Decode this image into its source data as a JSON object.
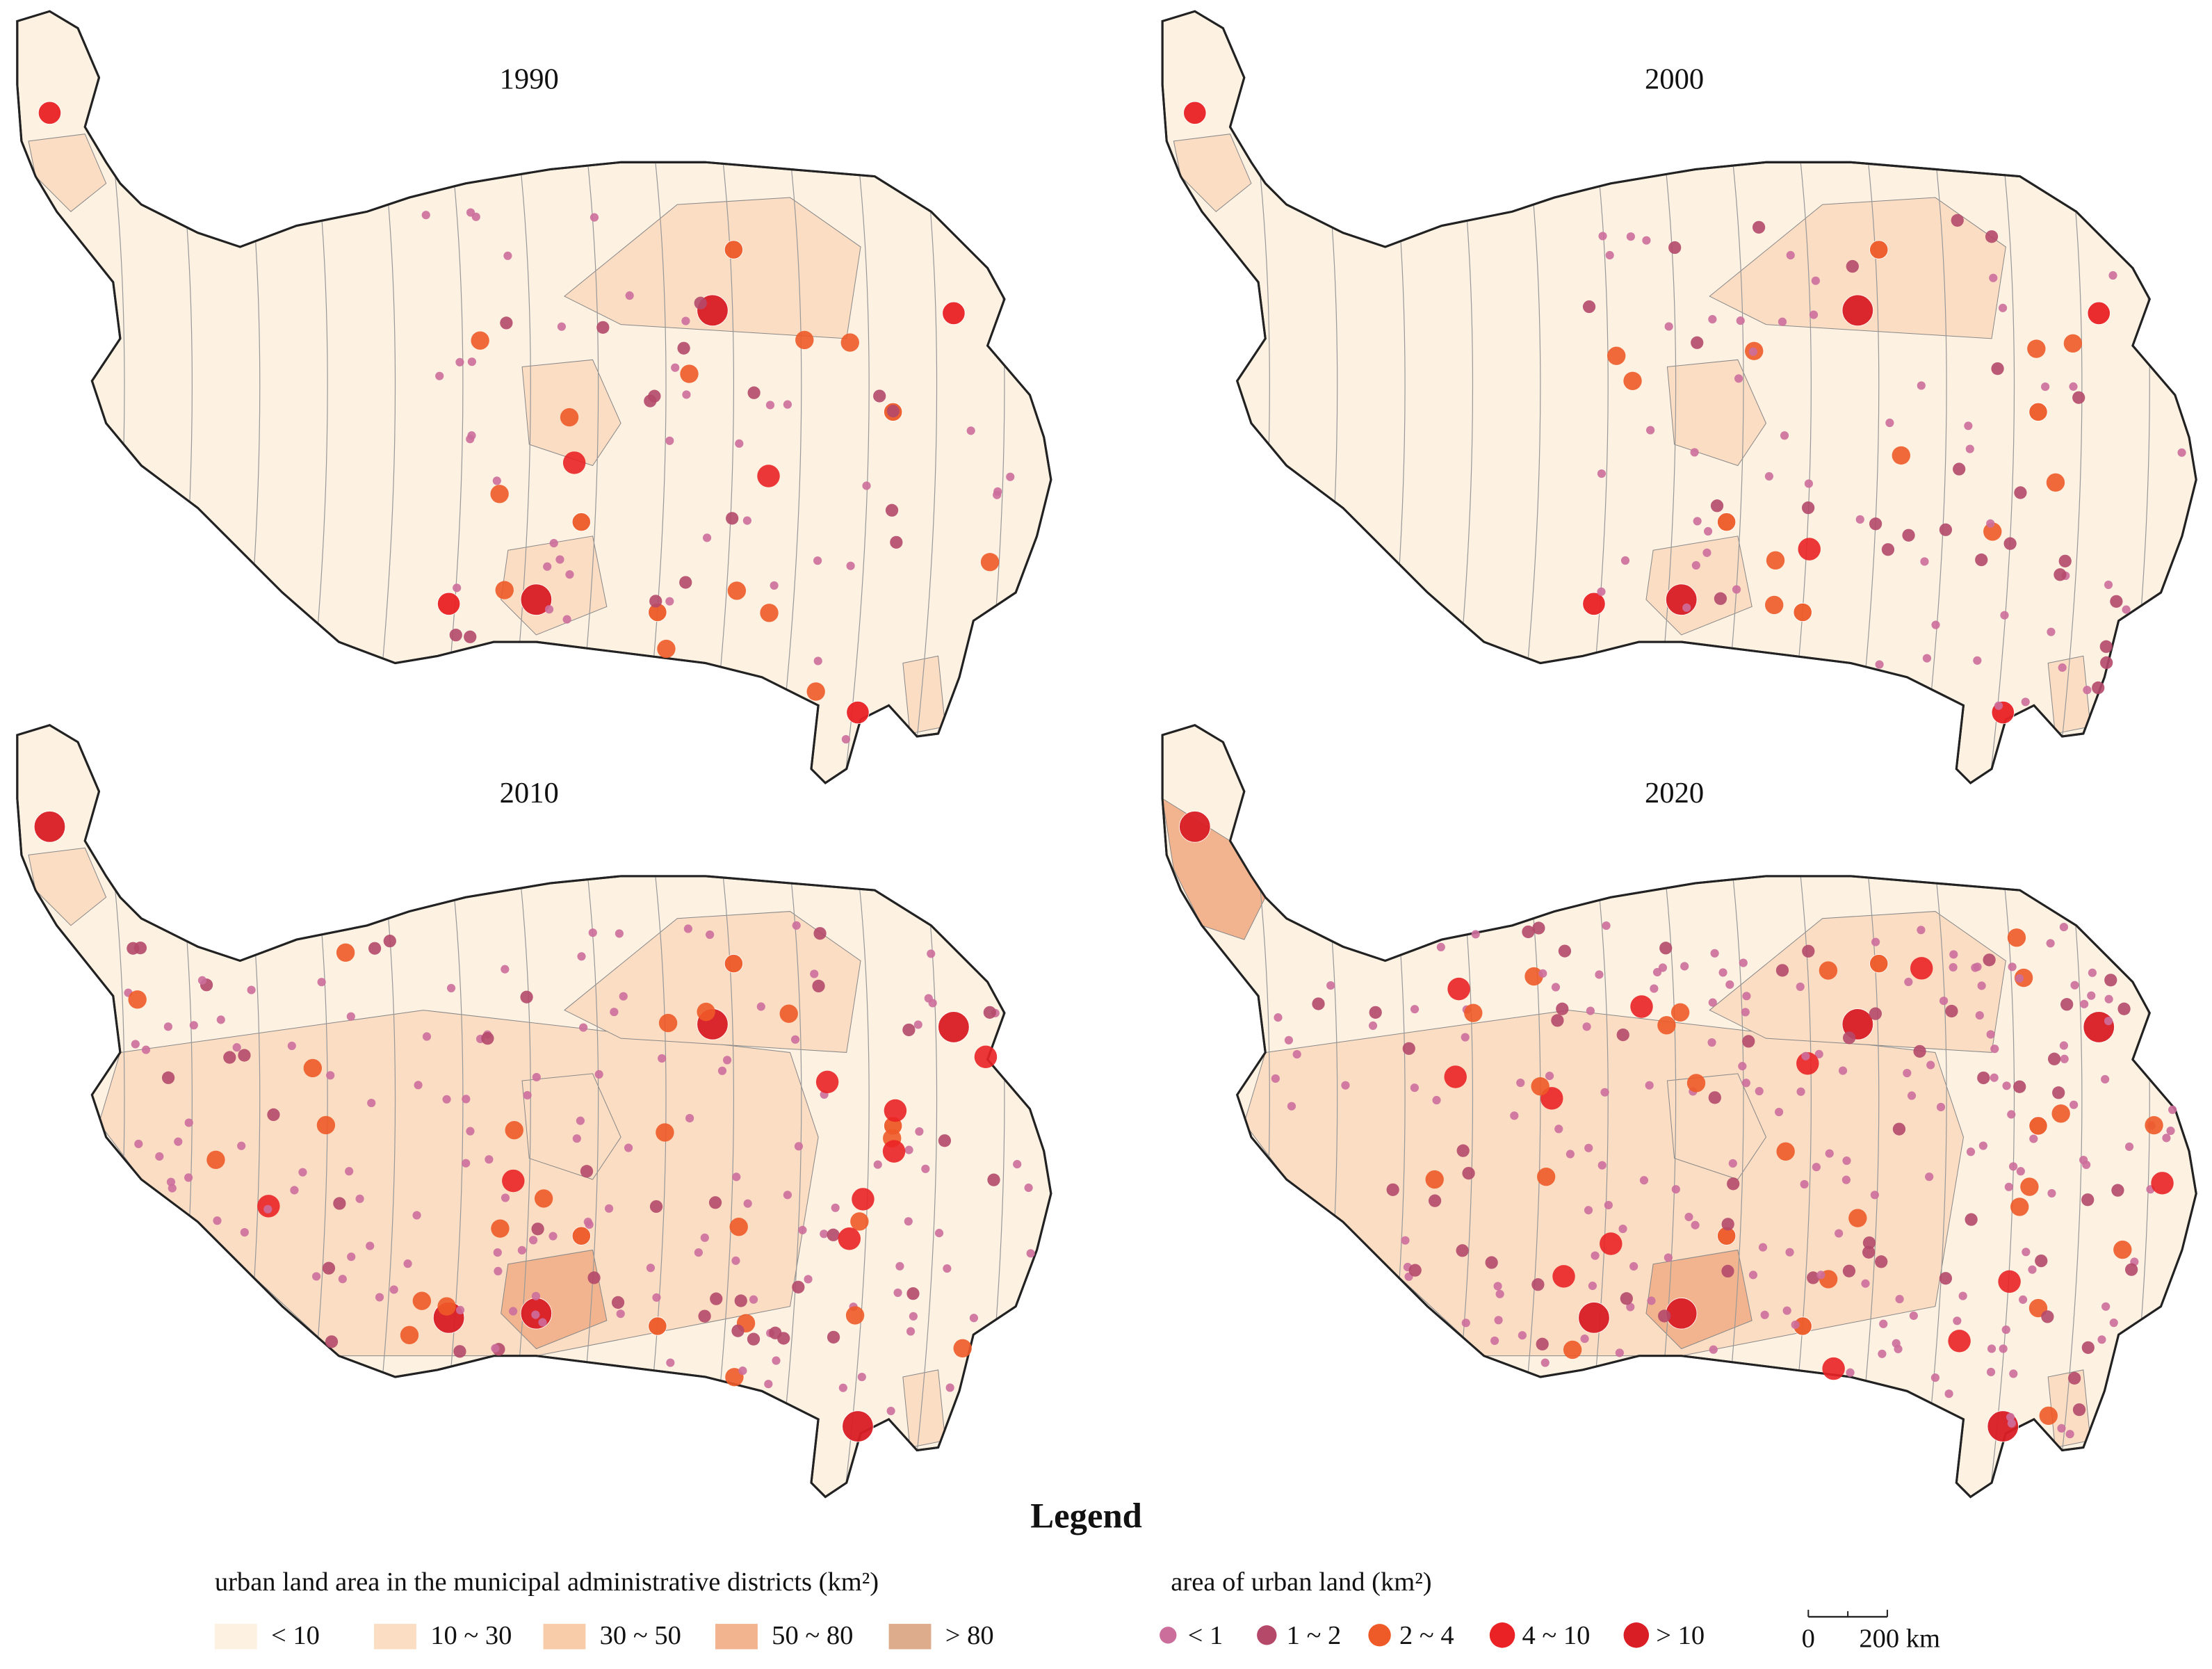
{
  "panels": [
    {
      "title": "1990"
    },
    {
      "title": "2000"
    },
    {
      "title": "2010"
    },
    {
      "title": "2020"
    }
  ],
  "legend": {
    "title": "Legend",
    "district_legend": {
      "title": "urban land area in the municipal administrative districts (km²)",
      "items": [
        {
          "label": "< 10",
          "color": "#fdf1e2"
        },
        {
          "label": "10 ~ 30",
          "color": "#fbddc4"
        },
        {
          "label": "30 ~ 50",
          "color": "#f8cba9"
        },
        {
          "label": "50 ~ 80",
          "color": "#f2b48f"
        },
        {
          "label": "> 80",
          "color": "#ddac8c"
        }
      ]
    },
    "urban_legend": {
      "title": "area of urban land (km²)",
      "items": [
        {
          "label": "< 1",
          "color": "#cc6e9c"
        },
        {
          "label": "1 ~ 2",
          "color": "#b4496a"
        },
        {
          "label": "2 ~ 4",
          "color": "#ee5a28"
        },
        {
          "label": "4 ~ 10",
          "color": "#ea2226"
        },
        {
          "label": "> 10",
          "color": "#d91e25"
        }
      ]
    },
    "scale_bar": {
      "labels": [
        "0",
        "200 km"
      ]
    }
  }
}
